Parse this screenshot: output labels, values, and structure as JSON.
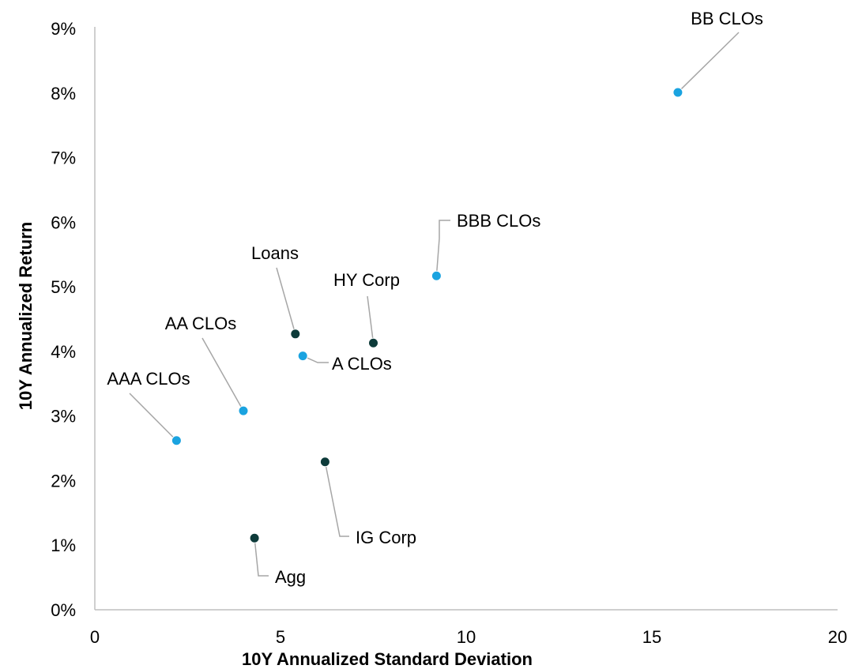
{
  "chart_data": {
    "type": "scatter",
    "title": "",
    "xlabel": "10Y Annualized Standard Deviation",
    "ylabel": "10Y Annualized Return",
    "xlim": [
      0,
      20
    ],
    "ylim": [
      0,
      9
    ],
    "x_ticks": [
      "0",
      "5",
      "10",
      "15",
      "20"
    ],
    "y_ticks": [
      "0%",
      "1%",
      "2%",
      "3%",
      "4%",
      "5%",
      "6%",
      "7%",
      "8%",
      "9%"
    ],
    "grid": false,
    "legend": "none",
    "colors": {
      "clo": "#1aa3e0",
      "other": "#0d3b3a"
    },
    "series": [
      {
        "color_key": "clo",
        "points": [
          {
            "label": "AAA CLOs",
            "x": 2.2,
            "y": 2.62
          },
          {
            "label": "AA CLOs",
            "x": 4.0,
            "y": 3.08
          },
          {
            "label": "A CLOs",
            "x": 5.6,
            "y": 3.93
          },
          {
            "label": "BBB CLOs",
            "x": 9.2,
            "y": 5.17
          },
          {
            "label": "BB CLOs",
            "x": 15.7,
            "y": 8.01
          }
        ]
      },
      {
        "color_key": "other",
        "points": [
          {
            "label": "Loans",
            "x": 5.4,
            "y": 4.27
          },
          {
            "label": "HY Corp",
            "x": 7.5,
            "y": 4.13
          },
          {
            "label": "IG Corp",
            "x": 6.2,
            "y": 2.29
          },
          {
            "label": "Agg",
            "x": 4.3,
            "y": 1.11
          }
        ]
      }
    ]
  }
}
